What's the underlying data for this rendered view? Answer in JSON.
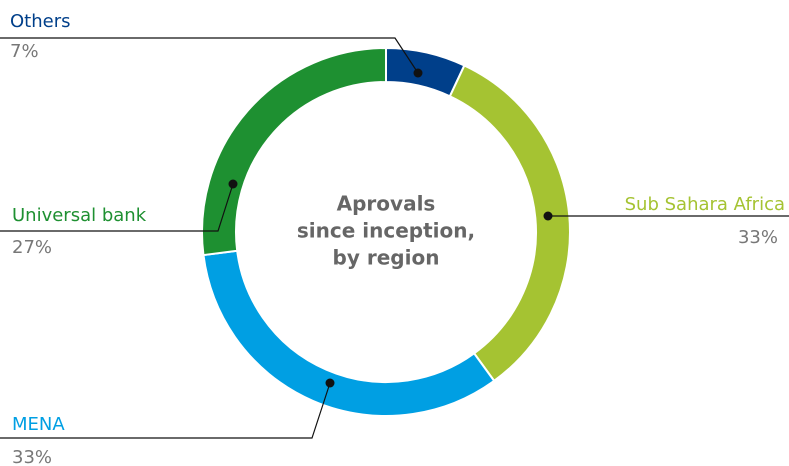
{
  "chart_data": {
    "type": "donut",
    "title": [
      "Aprovals",
      "since inception,",
      "by region"
    ],
    "categories": [
      "Others",
      "Sub Sahara Africa",
      "MENA",
      "Universal bank"
    ],
    "values": [
      7,
      33,
      33,
      27
    ],
    "value_labels": [
      "7%",
      "33%",
      "33%",
      "27%"
    ],
    "colors": [
      "#003f8a",
      "#a5c332",
      "#009fe3",
      "#1e9031"
    ]
  }
}
